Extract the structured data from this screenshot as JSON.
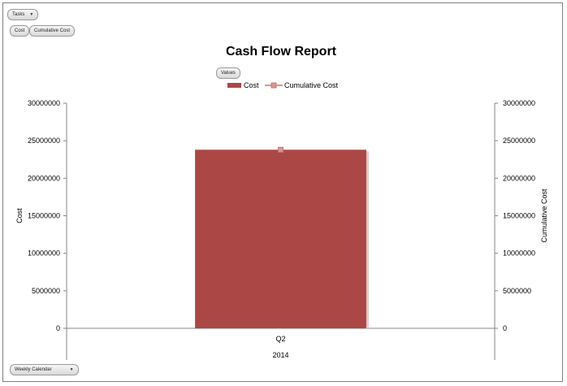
{
  "toolbar": {
    "tasks_label": "Tasks",
    "field_buttons": [
      "Cost",
      "Cumulative Cost"
    ],
    "values_label": "Values",
    "calendar_label": "Weekly Calendar"
  },
  "chart_data": {
    "type": "bar",
    "title": "Cash Flow Report",
    "categories": [
      "Q2"
    ],
    "category_group": "2014",
    "series": [
      {
        "name": "Cost",
        "type": "bar",
        "axis": "left",
        "values": [
          23800000
        ],
        "color": "#ab4744"
      },
      {
        "name": "Cumulative Cost",
        "type": "line",
        "axis": "right",
        "values": [
          23800000
        ],
        "color": "#d99694"
      }
    ],
    "ylabel": "Cost",
    "ylabel_right": "Cumulative Cost",
    "ylim": [
      0,
      30000000
    ],
    "ylim_right": [
      0,
      30000000
    ],
    "yticks": [
      "0",
      "5000000",
      "10000000",
      "15000000",
      "20000000",
      "25000000",
      "30000000"
    ],
    "legend": "top-center",
    "grid": false
  }
}
